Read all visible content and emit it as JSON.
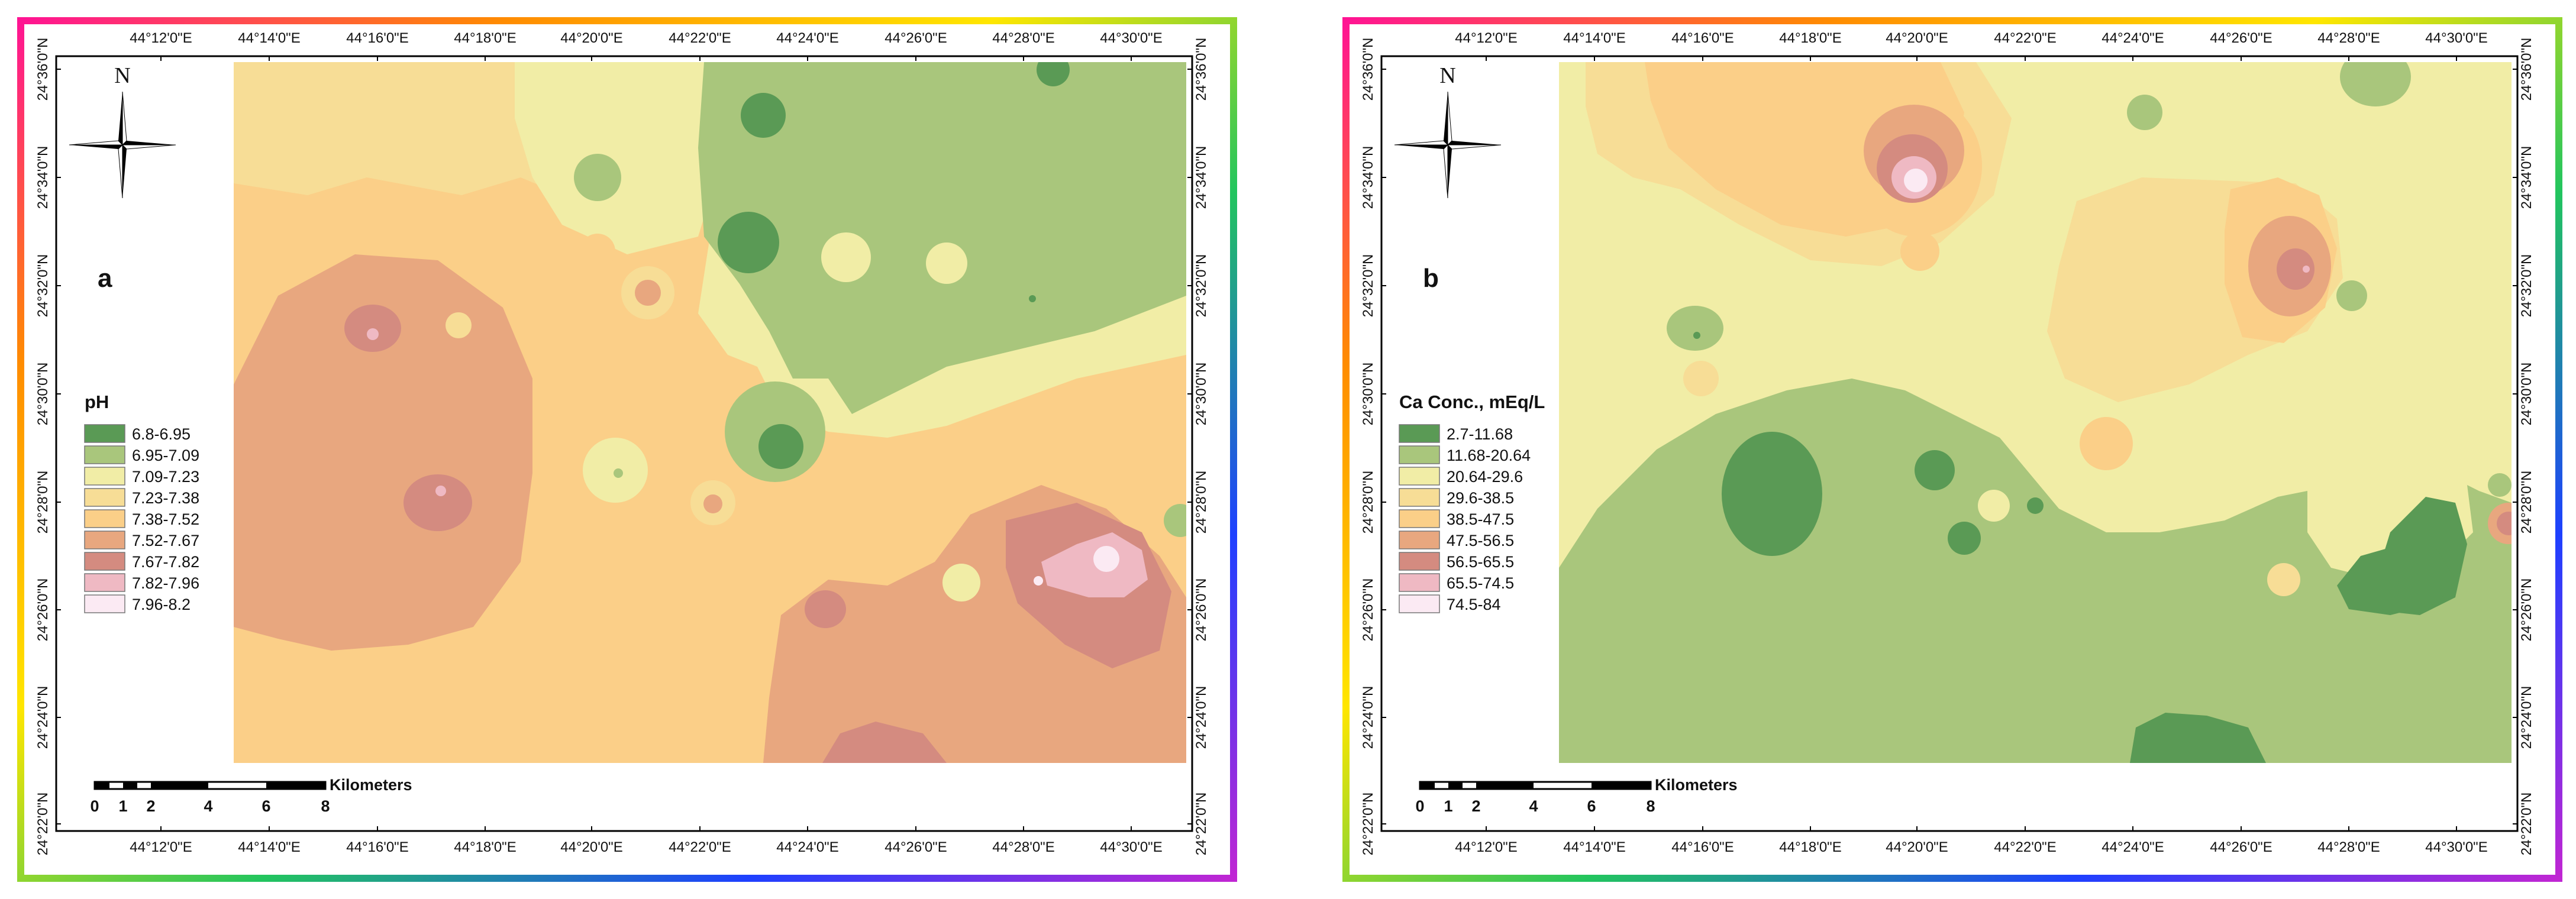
{
  "axes": {
    "longitude_ticks": [
      "44°12'0\"E",
      "44°14'0\"E",
      "44°16'0\"E",
      "44°18'0\"E",
      "44°20'0\"E",
      "44°22'0\"E",
      "44°24'0\"E",
      "44°26'0\"E",
      "44°28'0\"E",
      "44°30'0\"E"
    ],
    "latitude_ticks": [
      "24°36'0\"N",
      "24°34'0\"N",
      "24°32'0\"N",
      "24°30'0\"N",
      "24°28'0\"N",
      "24°26'0\"N",
      "24°24'0\"N",
      "24°22'0\"N"
    ]
  },
  "panels": [
    {
      "letter": "a",
      "legend_title": "pH",
      "legend": [
        {
          "label": "6.8-6.95",
          "color": "#5a9a55"
        },
        {
          "label": "6.95-7.09",
          "color": "#a9c67c"
        },
        {
          "label": "7.09-7.23",
          "color": "#f1eda6"
        },
        {
          "label": "7.23-7.38",
          "color": "#f7dd96"
        },
        {
          "label": "7.38-7.52",
          "color": "#fbcf88"
        },
        {
          "label": "7.52-7.67",
          "color": "#e8a77f"
        },
        {
          "label": "7.67-7.82",
          "color": "#d48b80"
        },
        {
          "label": "7.82-7.96",
          "color": "#efb9c3"
        },
        {
          "label": "7.96-8.2",
          "color": "#fbeaf3"
        }
      ]
    },
    {
      "letter": "b",
      "legend_title": "Ca Conc., mEq/L",
      "legend": [
        {
          "label": "2.7-11.68",
          "color": "#5a9a55"
        },
        {
          "label": "11.68-20.64",
          "color": "#a9c67c"
        },
        {
          "label": "20.64-29.6",
          "color": "#f1eda6"
        },
        {
          "label": "29.6-38.5",
          "color": "#f7dd96"
        },
        {
          "label": "38.5-47.5",
          "color": "#fbcf88"
        },
        {
          "label": "47.5-56.5",
          "color": "#e8a77f"
        },
        {
          "label": "56.5-65.5",
          "color": "#d48b80"
        },
        {
          "label": "65.5-74.5",
          "color": "#efb9c3"
        },
        {
          "label": "74.5-84",
          "color": "#fbeaf3"
        }
      ]
    }
  ],
  "scale_bar": {
    "unit": "Kilometers",
    "labels": [
      "0",
      "1",
      "2",
      "4",
      "6",
      "8"
    ]
  },
  "north_arrow": {
    "letter": "N"
  }
}
